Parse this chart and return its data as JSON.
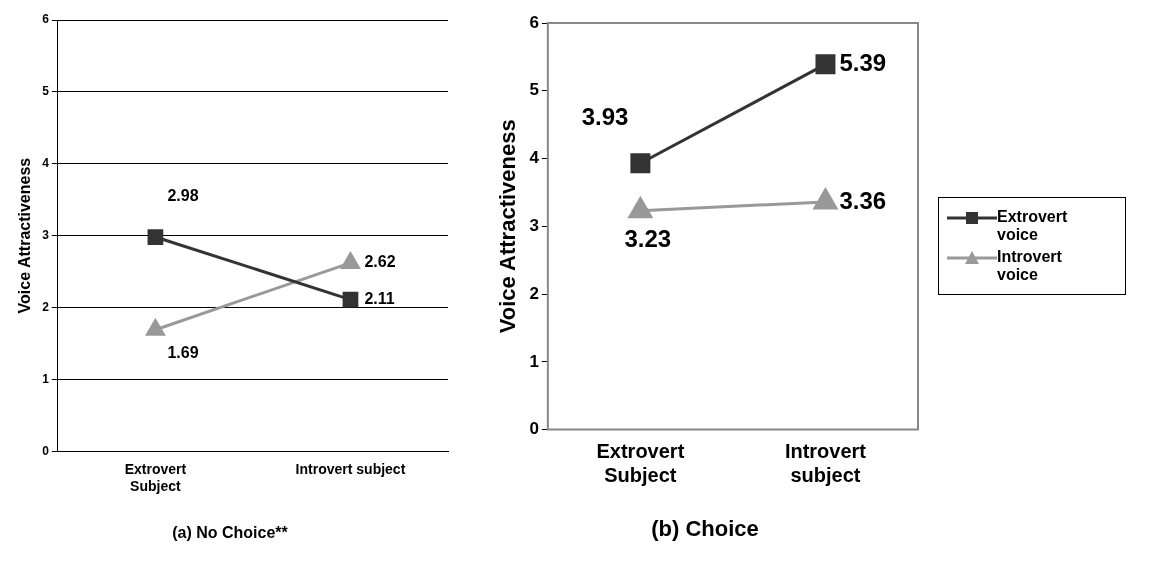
{
  "chart_data": [
    {
      "type": "line",
      "title": "(a) No Choice**",
      "ylabel": "Voice Attractiveness",
      "categories": [
        "Extrovert Subject",
        "Introvert subject"
      ],
      "series": [
        {
          "color": "#333333",
          "marker": "square",
          "values": [
            2.98,
            2.11
          ]
        },
        {
          "color": "#999999",
          "marker": "triangle",
          "values": [
            1.69,
            2.62
          ]
        }
      ],
      "ylim": [
        0,
        6
      ],
      "yticks": [
        0,
        1,
        2,
        3,
        4,
        5,
        6
      ],
      "grid": "y",
      "data_labels": true,
      "legend": false
    },
    {
      "type": "line",
      "title": "(b) Choice",
      "ylabel": "Voice Attractiveness",
      "categories": [
        "Extrovert Subject",
        "Introvert subject"
      ],
      "series": [
        {
          "name": "Extrovert voice",
          "color": "#333333",
          "marker": "square",
          "values": [
            3.93,
            5.39
          ]
        },
        {
          "name": "Introvert voice",
          "color": "#999999",
          "marker": "triangle",
          "values": [
            3.23,
            3.36
          ]
        }
      ],
      "ylim": [
        0,
        6
      ],
      "yticks": [
        0,
        1,
        2,
        3,
        4,
        5,
        6
      ],
      "grid": false,
      "data_labels": true,
      "legend": "right"
    }
  ]
}
